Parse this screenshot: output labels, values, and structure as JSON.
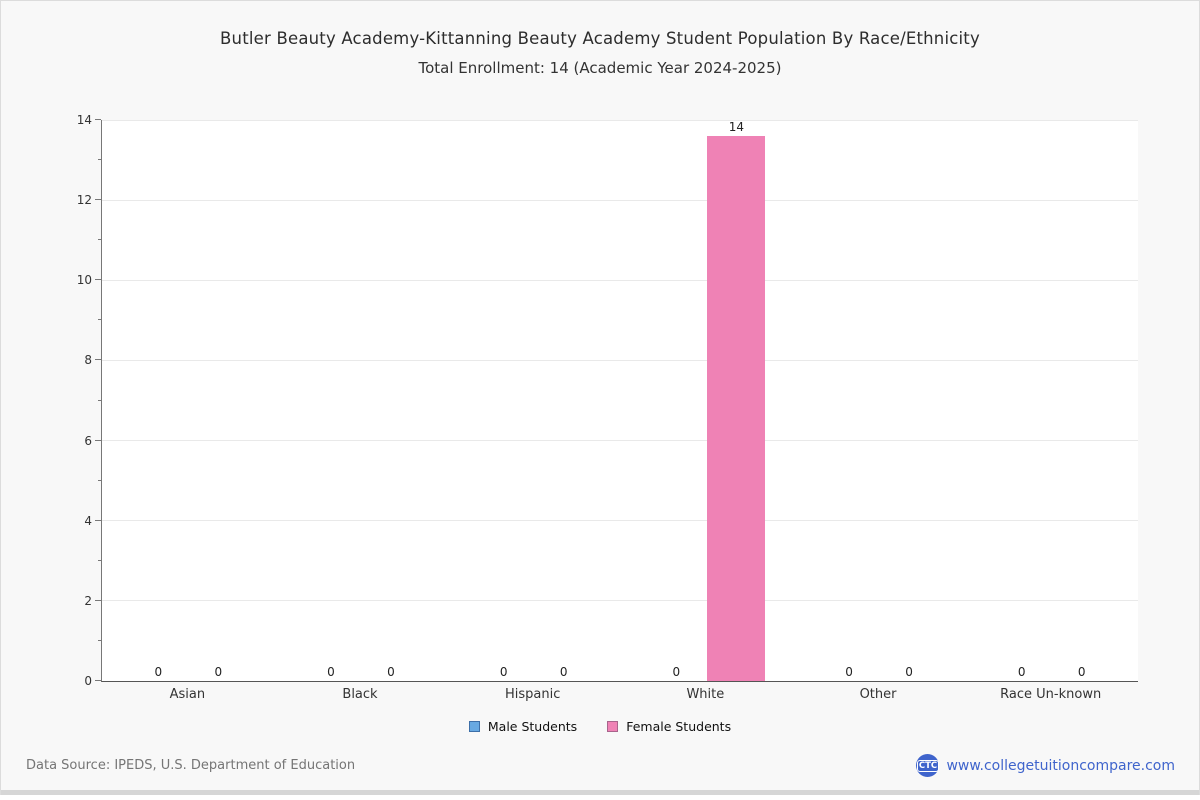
{
  "chart": {
    "title": "Butler Beauty Academy-Kittanning Beauty Academy Student Population By Race/Ethnicity",
    "subtitle": "Total Enrollment: 14 (Academic Year 2024-2025)"
  },
  "chart_data": {
    "type": "bar",
    "title": "Butler Beauty Academy-Kittanning Beauty Academy Student Population By Race/Ethnicity",
    "subtitle": "Total Enrollment: 14 (Academic Year 2024-2025)",
    "categories": [
      "Asian",
      "Black",
      "Hispanic",
      "White",
      "Other",
      "Race Un-known"
    ],
    "series": [
      {
        "name": "Male Students",
        "color": "#68a9e2",
        "border_color": "#3d6fa8",
        "values": [
          0,
          0,
          0,
          0,
          0,
          0
        ]
      },
      {
        "name": "Female Students",
        "color": "#ef82b5",
        "border_color": "#a8648c",
        "values": [
          0,
          0,
          0,
          14,
          0,
          0
        ]
      }
    ],
    "ylim": [
      0,
      14
    ],
    "yticks": [
      0,
      2,
      4,
      6,
      8,
      10,
      12,
      14
    ],
    "grid": true,
    "legend_position": "bottom",
    "bar_value_labels": true
  },
  "footer": {
    "source": "Data Source: IPEDS, U.S. Department of Education",
    "logo_text": "CTC",
    "logo_color": "#3f64cc",
    "website": "www.collegetuitioncompare.com",
    "website_color": "#3f64cc"
  }
}
